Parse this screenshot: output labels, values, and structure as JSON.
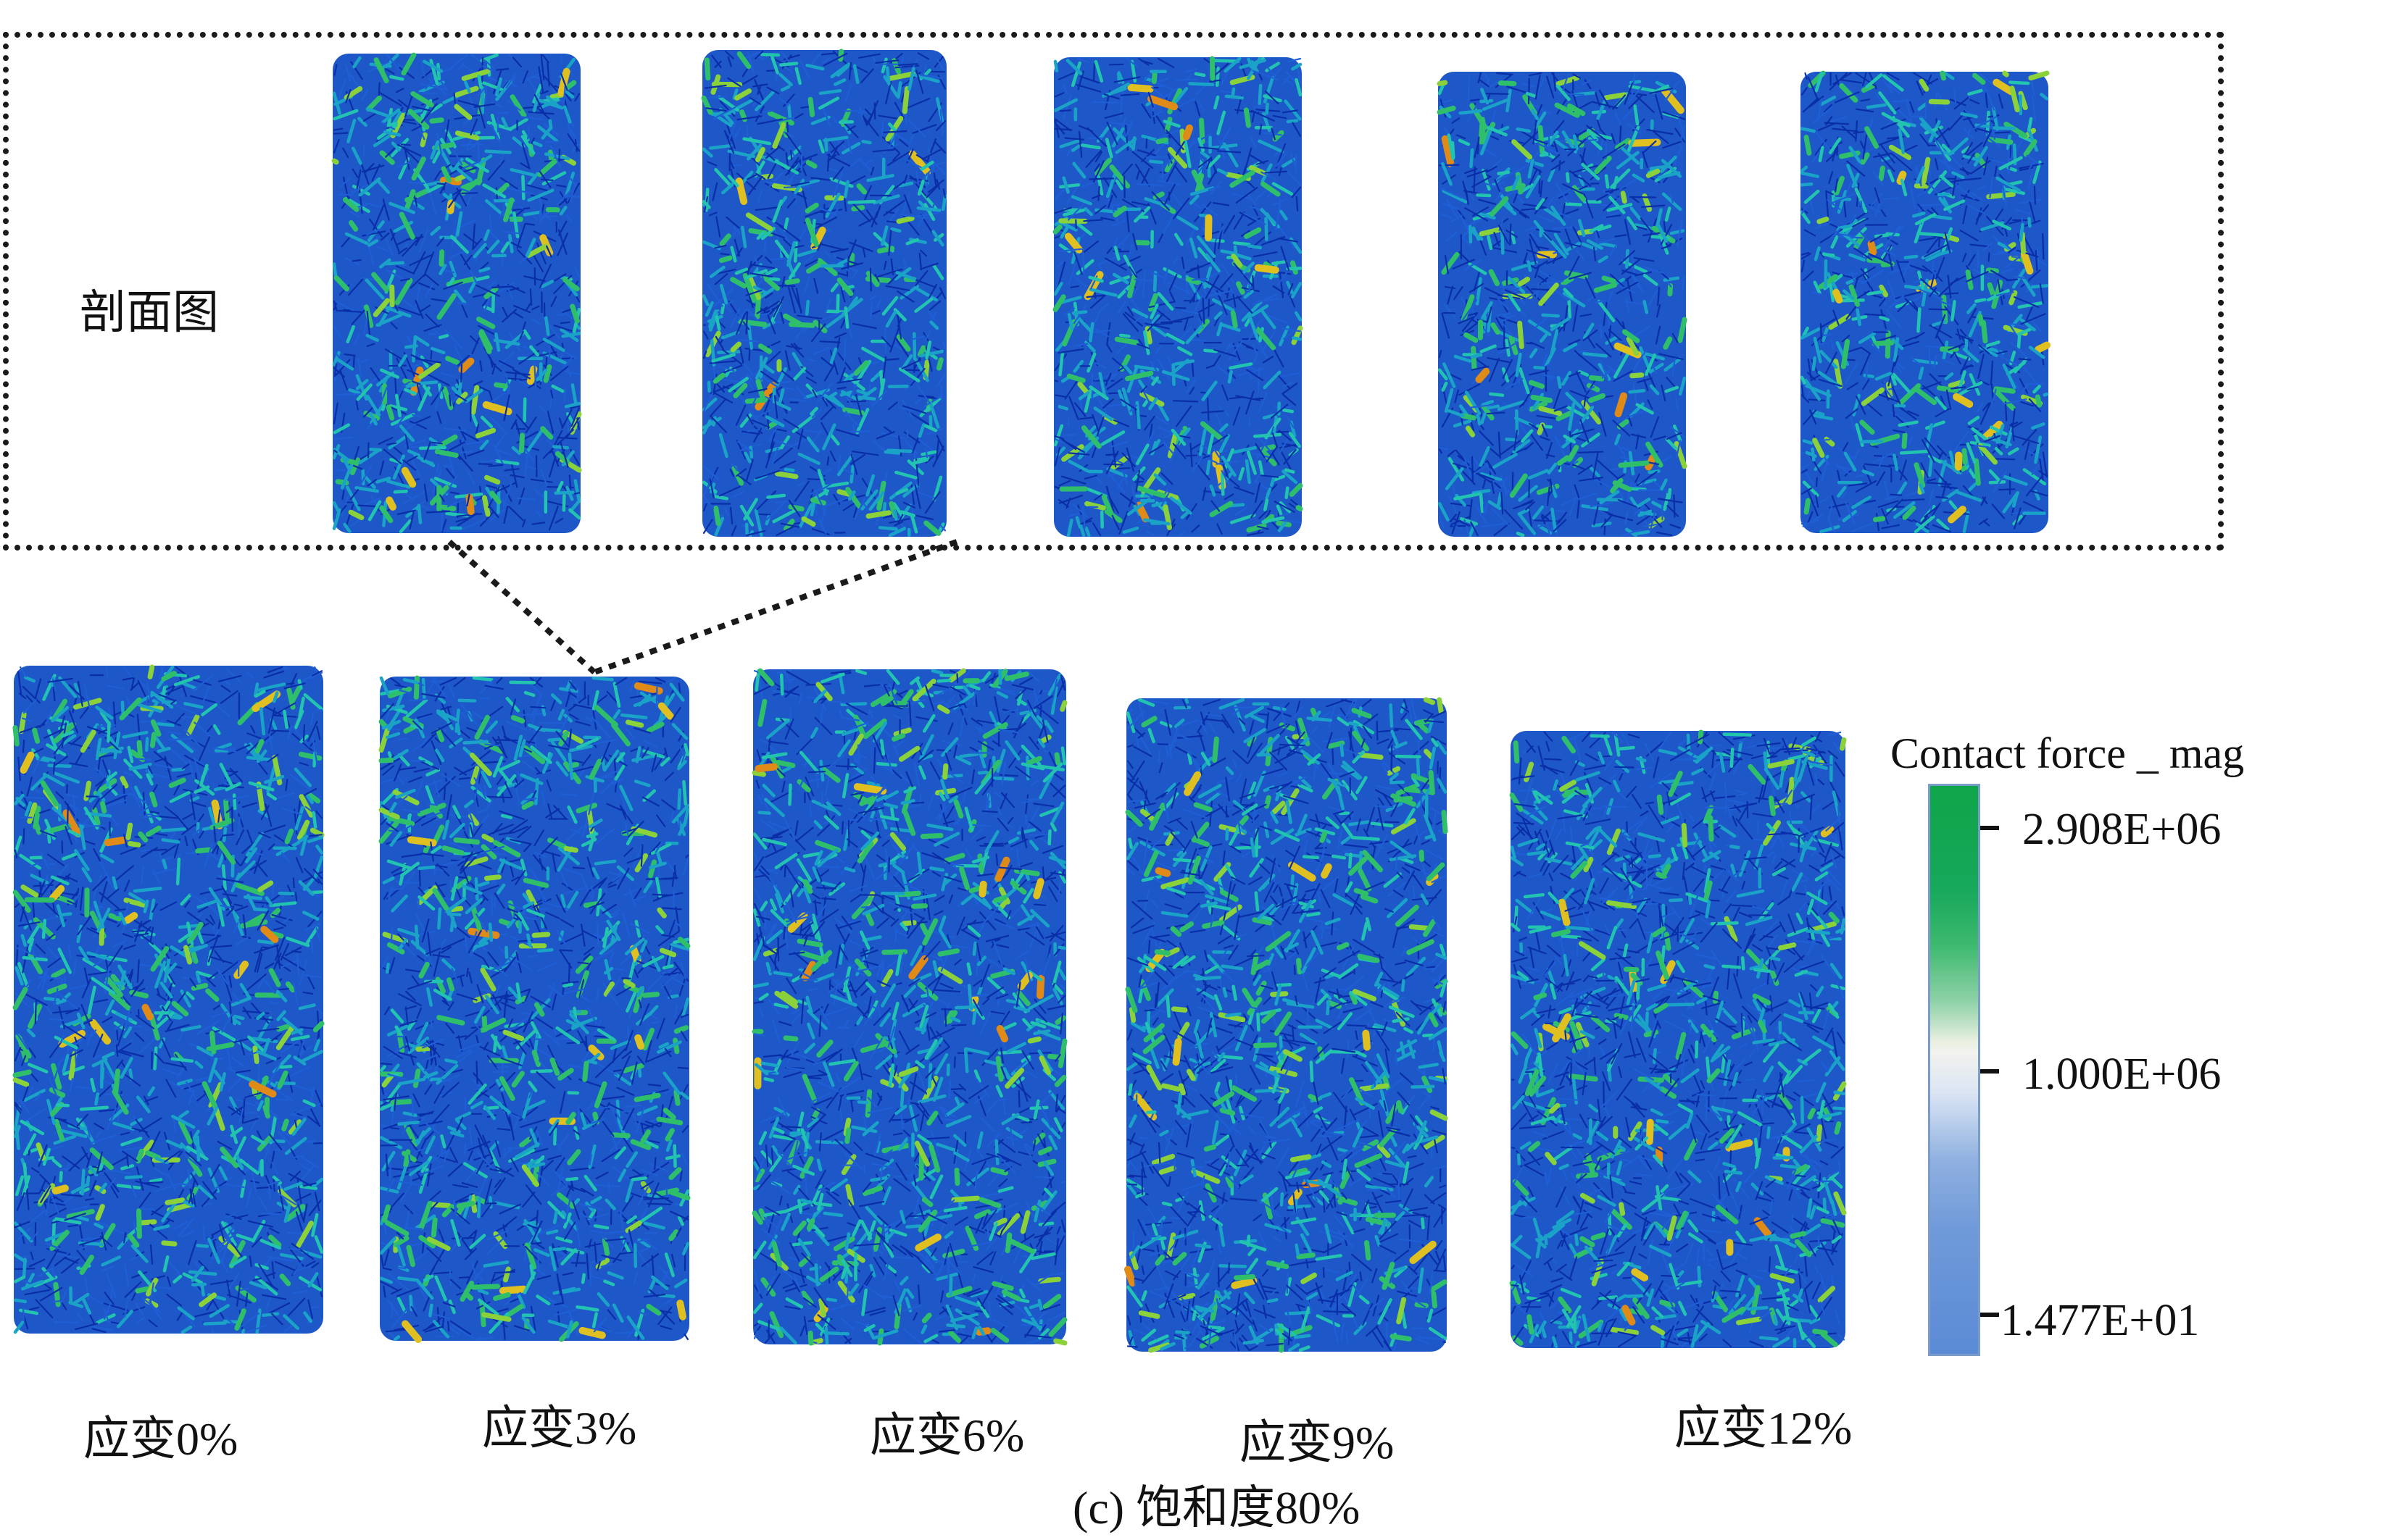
{
  "section_label": "剖面图",
  "strain_labels": [
    "应变0%",
    "应变3%",
    "应变6%",
    "应变9%",
    "应变12%"
  ],
  "caption": "(c) 饱和度80%",
  "colorbar": {
    "title": "Contact force _ mag",
    "ticks": [
      "2.908E+06",
      "1.000E+06",
      "1.477E+01"
    ],
    "colors": [
      "#0fa54a",
      "#f2f2ee",
      "#5b8bd6"
    ]
  },
  "palette": {
    "background_blue": "#1e58c8",
    "force_chain_colors": [
      "#0a2ea8",
      "#1f5fd6",
      "#1aa3c7",
      "#22c4b0",
      "#2fbf6a",
      "#8bd23a",
      "#e0c020",
      "#e08a18",
      "#b01010"
    ]
  }
}
